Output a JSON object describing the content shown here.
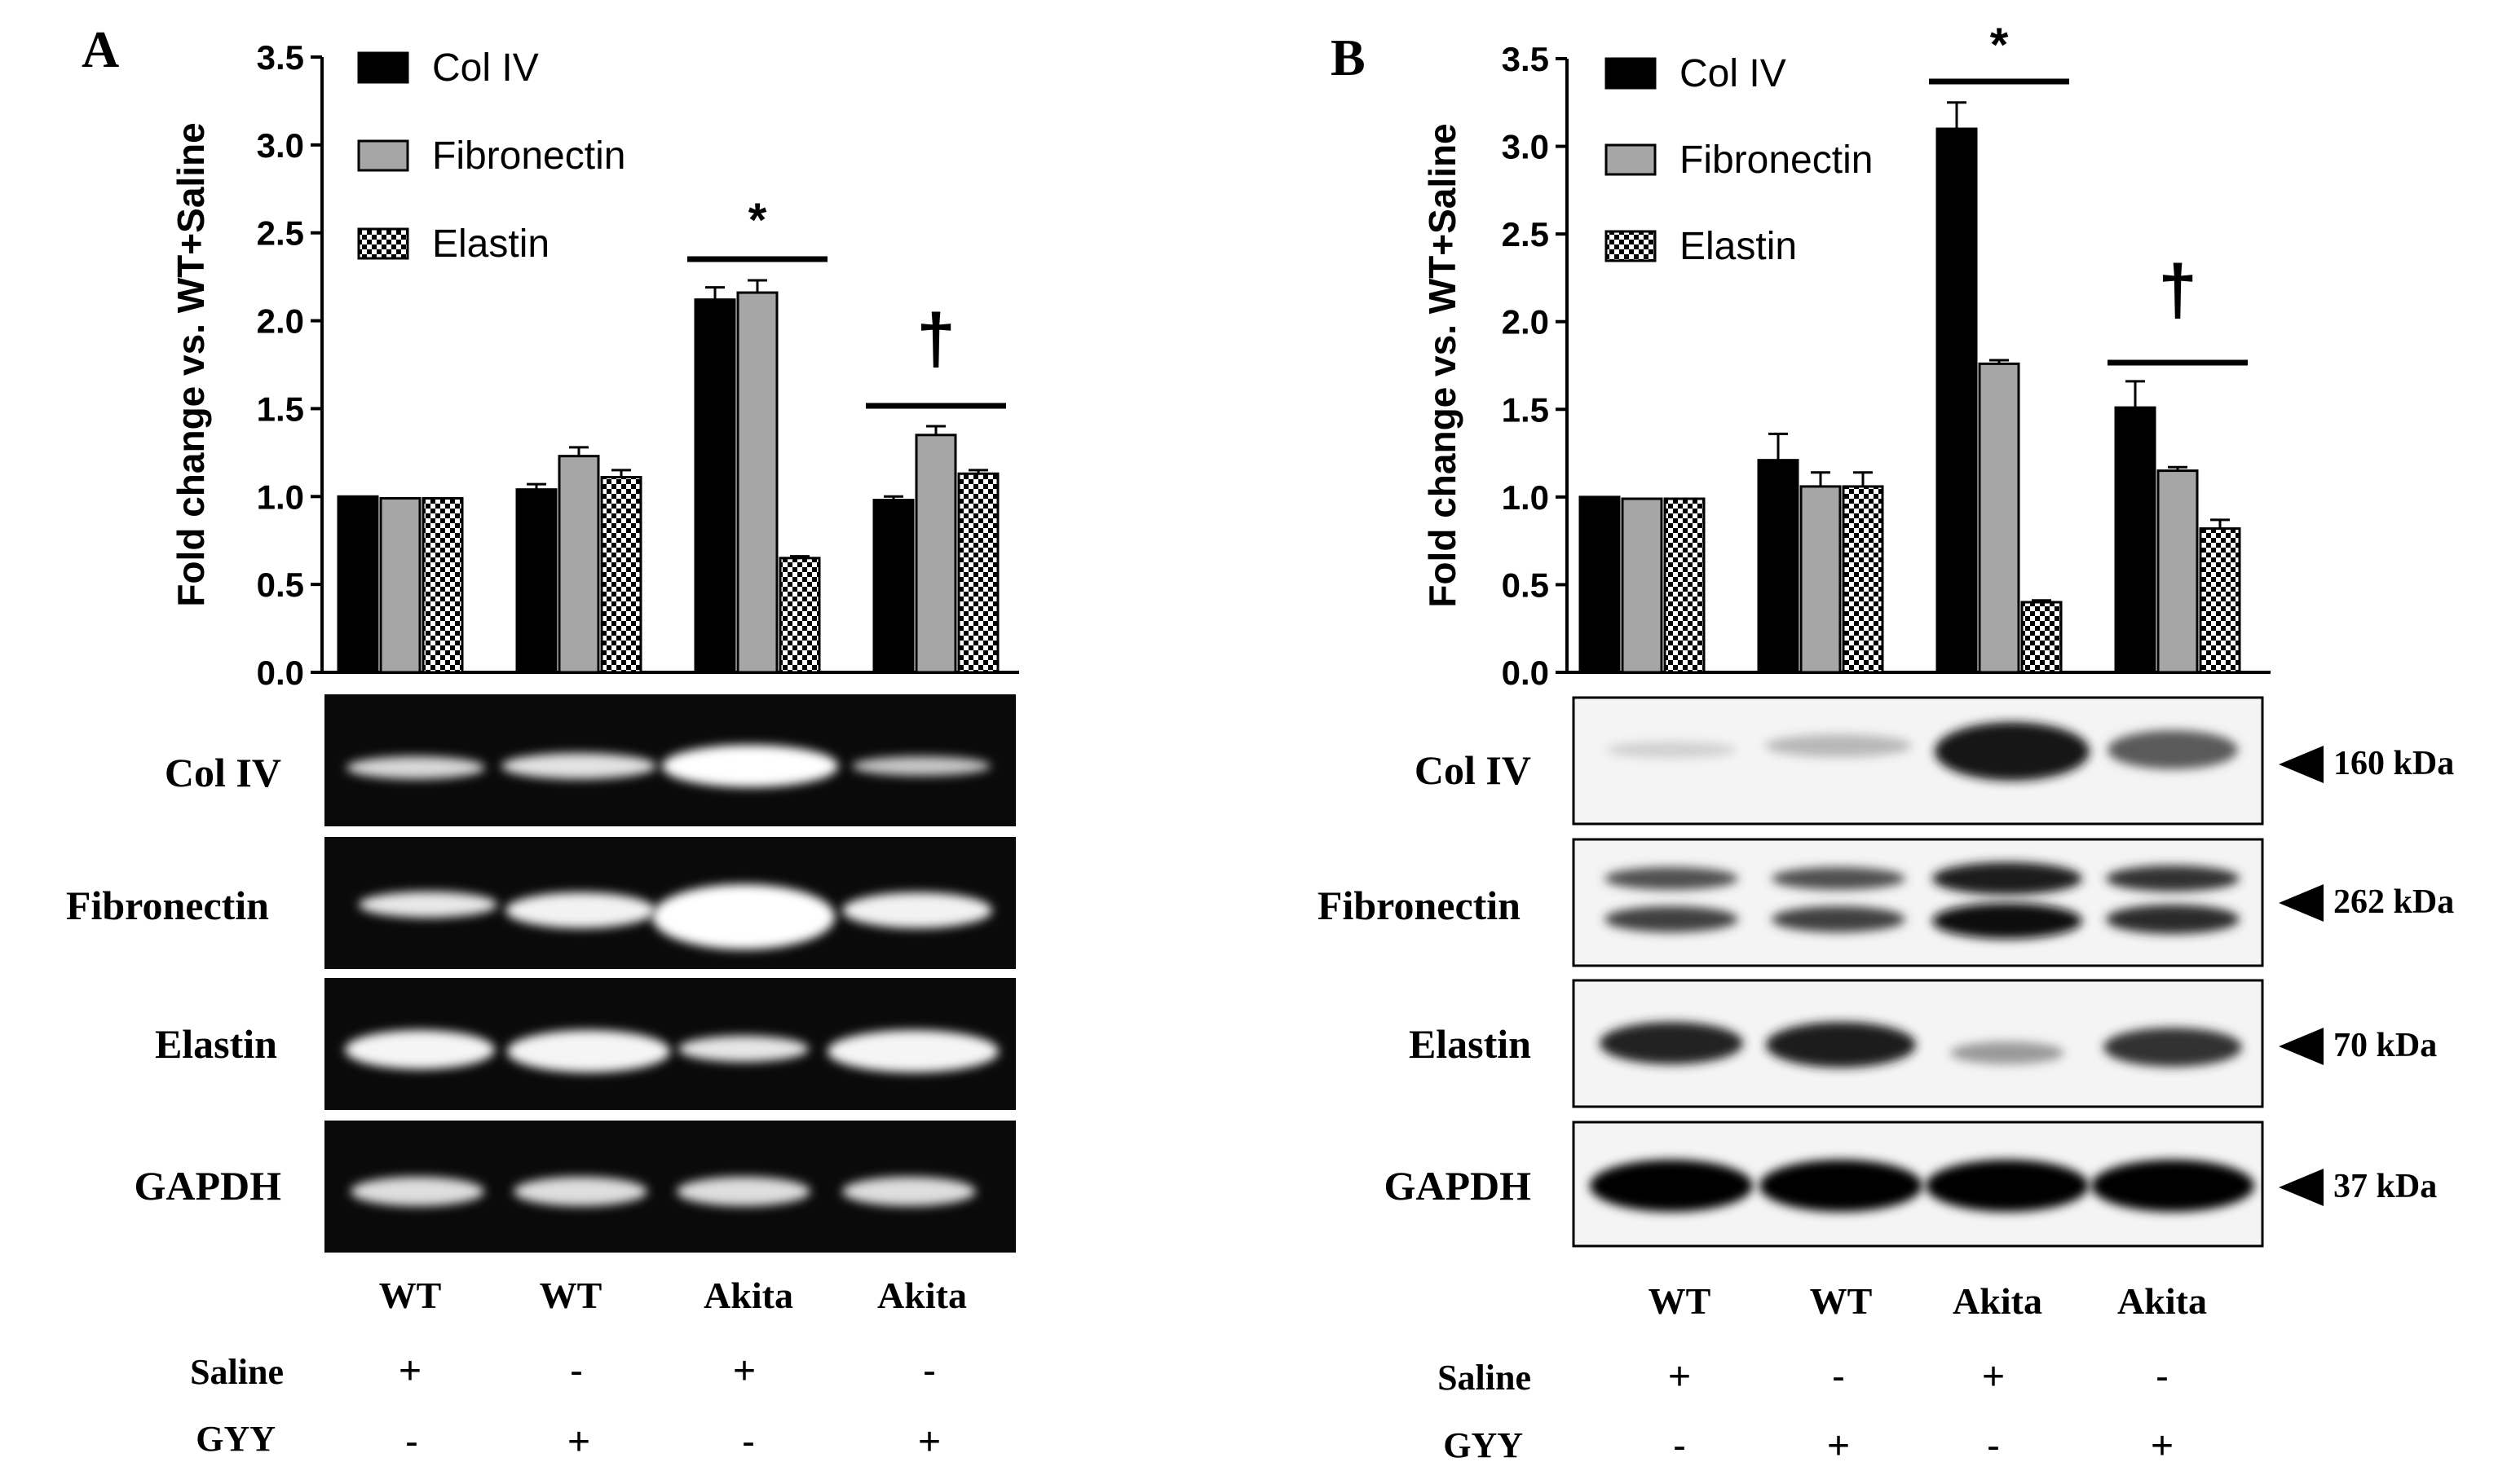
{
  "panels": [
    {
      "letter": "A",
      "ylabel": "Fold change vs. WT+Saline",
      "legend": [
        "Col IV",
        "Fibronectin",
        "Elastin"
      ],
      "blot_rows": [
        "Col IV",
        "Fibronectin",
        "Elastin",
        "GAPDH"
      ],
      "kda": [],
      "lane_labels": [
        "WT",
        "WT",
        "Akita",
        "Akita"
      ],
      "conditions": [
        {
          "name": "Saline",
          "signs": [
            "+",
            "-",
            "+",
            "-"
          ]
        },
        {
          "name": "GYY",
          "signs": [
            "-",
            "+",
            "-",
            "+"
          ]
        }
      ],
      "annotations": [
        {
          "symbol": "*",
          "group": 2
        },
        {
          "symbol": "†",
          "group": 3
        }
      ]
    },
    {
      "letter": "B",
      "ylabel": "Fold change vs. WT+Saline",
      "legend": [
        "Col IV",
        "Fibronectin",
        "Elastin"
      ],
      "blot_rows": [
        "Col IV",
        "Fibronectin",
        "Elastin",
        "GAPDH"
      ],
      "kda": [
        "160 kDa",
        "262 kDa",
        "70 kDa",
        "37 kDa"
      ],
      "lane_labels": [
        "WT",
        "WT",
        "Akita",
        "Akita"
      ],
      "conditions": [
        {
          "name": "Saline",
          "signs": [
            "+",
            "-",
            "+",
            "-"
          ]
        },
        {
          "name": "GYY",
          "signs": [
            "-",
            "+",
            "-",
            "+"
          ]
        }
      ],
      "annotations": [
        {
          "symbol": "*",
          "group": 2
        },
        {
          "symbol": "†",
          "group": 3
        }
      ]
    }
  ],
  "chart_data": [
    {
      "type": "bar",
      "panel": "A",
      "categories": [
        "WT Saline+",
        "WT GYY+",
        "Akita Saline+",
        "Akita GYY+"
      ],
      "series": [
        {
          "name": "Col IV",
          "values": [
            1.0,
            1.04,
            2.12,
            0.98
          ],
          "errors": [
            0.0,
            0.03,
            0.07,
            0.02
          ],
          "fill": "solid-black"
        },
        {
          "name": "Fibronectin",
          "values": [
            0.99,
            1.23,
            2.16,
            1.35
          ],
          "errors": [
            0.0,
            0.05,
            0.07,
            0.05
          ],
          "fill": "solid-gray"
        },
        {
          "name": "Elastin",
          "values": [
            0.99,
            1.11,
            0.65,
            1.13
          ],
          "errors": [
            0.0,
            0.04,
            0.01,
            0.02
          ],
          "fill": "checker"
        }
      ],
      "ylabel": "Fold change vs. WT+Saline",
      "yticks": [
        "0.0",
        "0.5",
        "1.0",
        "1.5",
        "2.0",
        "2.5",
        "3.0",
        "3.5"
      ],
      "ylim": [
        0,
        3.5
      ],
      "legend_position": "top-left",
      "grid": false
    },
    {
      "type": "bar",
      "panel": "B",
      "categories": [
        "WT Saline+",
        "WT GYY+",
        "Akita Saline+",
        "Akita GYY+"
      ],
      "series": [
        {
          "name": "Col IV",
          "values": [
            1.0,
            1.21,
            3.1,
            1.51
          ],
          "errors": [
            0.0,
            0.15,
            0.15,
            0.15
          ],
          "fill": "solid-black"
        },
        {
          "name": "Fibronectin",
          "values": [
            0.99,
            1.06,
            1.76,
            1.15
          ],
          "errors": [
            0.0,
            0.08,
            0.02,
            0.02
          ],
          "fill": "solid-gray"
        },
        {
          "name": "Elastin",
          "values": [
            0.99,
            1.06,
            0.4,
            0.82
          ],
          "errors": [
            0.0,
            0.08,
            0.01,
            0.05
          ],
          "fill": "checker"
        }
      ],
      "ylabel": "Fold change vs. WT+Saline",
      "yticks": [
        "0.0",
        "0.5",
        "1.0",
        "1.5",
        "2.0",
        "2.5",
        "3.0",
        "3.5"
      ],
      "ylim": [
        0,
        3.5
      ],
      "legend_position": "top-left",
      "grid": false
    }
  ]
}
